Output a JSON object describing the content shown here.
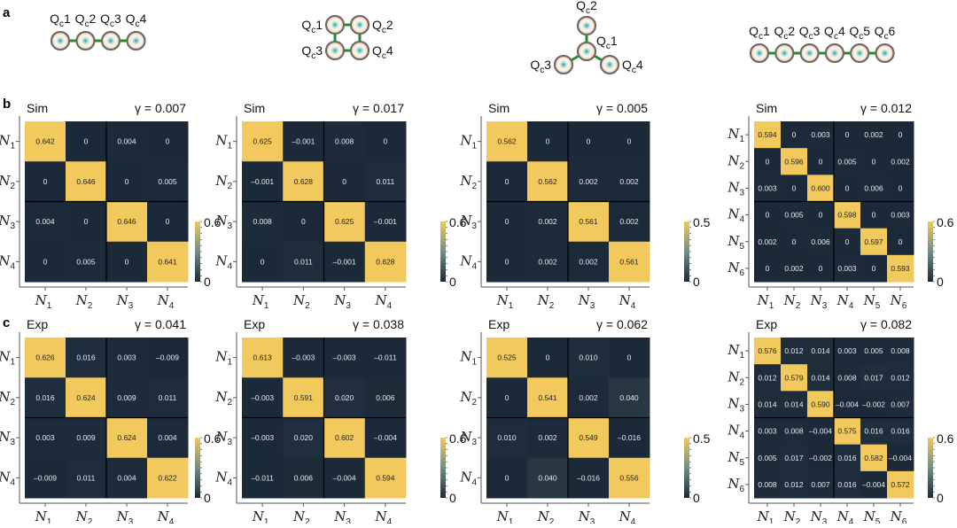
{
  "panel_labels": {
    "a": "a",
    "b": "b",
    "c": "c"
  },
  "colors": {
    "low": "#1b2938",
    "mid": "#6f8f86",
    "high": "#f1c95c",
    "coupler": "#1a8f2a",
    "qubit_ring": "#6b6b6b",
    "qubit_fill": "#f7d9bf",
    "qubit_core": "#3aa6a6"
  },
  "diagrams": [
    {
      "layout": "chain",
      "qubits": [
        "Qc1",
        "Qc2",
        "Qc3",
        "Qc4"
      ]
    },
    {
      "layout": "square",
      "qubits": [
        "Qc1",
        "Qc2",
        "Qc3",
        "Qc4"
      ]
    },
    {
      "layout": "star",
      "qubits": [
        "Qc1",
        "Qc2",
        "Qc3",
        "Qc4"
      ]
    },
    {
      "layout": "chain",
      "qubits": [
        "Qc1",
        "Qc2",
        "Qc3",
        "Qc4",
        "Qc5",
        "Qc6"
      ]
    }
  ],
  "chart_data": [
    {
      "type": "heatmap",
      "row": "b",
      "title": "Sim",
      "gamma": "γ = 0.007",
      "ticks": [
        "N1",
        "N2",
        "N3",
        "N4"
      ],
      "colorbar": {
        "min": 0,
        "max": 0.6,
        "labels": [
          "0.6",
          "0"
        ]
      },
      "values": [
        [
          "0.642",
          "0",
          "0.004",
          "0"
        ],
        [
          "0",
          "0.646",
          "0",
          "0.005"
        ],
        [
          "0.004",
          "0",
          "0.646",
          "0"
        ],
        [
          "0",
          "0.005",
          "0",
          "0.641"
        ]
      ]
    },
    {
      "type": "heatmap",
      "row": "b",
      "title": "Sim",
      "gamma": "γ = 0.017",
      "ticks": [
        "N1",
        "N2",
        "N3",
        "N4"
      ],
      "colorbar": {
        "min": 0,
        "max": 0.6,
        "labels": [
          "0.6",
          "0"
        ]
      },
      "values": [
        [
          "0.625",
          "-0.001",
          "0.008",
          "0"
        ],
        [
          "-0.001",
          "0.628",
          "0",
          "0.011"
        ],
        [
          "0.008",
          "0",
          "0.625",
          "-0.001"
        ],
        [
          "0",
          "0.011",
          "-0.001",
          "0.628"
        ]
      ]
    },
    {
      "type": "heatmap",
      "row": "b",
      "title": "Sim",
      "gamma": "γ = 0.005",
      "ticks": [
        "N1",
        "N2",
        "N3",
        "N4"
      ],
      "colorbar": {
        "min": 0,
        "max": 0.5,
        "labels": [
          "0.5",
          "0"
        ]
      },
      "values": [
        [
          "0.562",
          "0",
          "0",
          "0"
        ],
        [
          "0",
          "0.562",
          "0.002",
          "0.002"
        ],
        [
          "0",
          "0.002",
          "0.561",
          "0.002"
        ],
        [
          "0",
          "0.002",
          "0.002",
          "0.561"
        ]
      ]
    },
    {
      "type": "heatmap",
      "row": "b",
      "title": "Sim",
      "gamma": "γ = 0.012",
      "ticks": [
        "N1",
        "N2",
        "N3",
        "N4",
        "N5",
        "N6"
      ],
      "colorbar": {
        "min": 0,
        "max": 0.6,
        "labels": [
          "0.6",
          "0"
        ]
      },
      "values": [
        [
          "0.594",
          "0",
          "0.003",
          "0",
          "0.002",
          "0"
        ],
        [
          "0",
          "0.596",
          "0",
          "0.005",
          "0",
          "0.002"
        ],
        [
          "0.003",
          "0",
          "0.600",
          "0",
          "0.006",
          "0"
        ],
        [
          "0",
          "0.005",
          "0",
          "0.598",
          "0",
          "0.003"
        ],
        [
          "0.002",
          "0",
          "0.006",
          "0",
          "0.597",
          "0"
        ],
        [
          "0",
          "0.002",
          "0",
          "0.003",
          "0",
          "0.593"
        ]
      ]
    },
    {
      "type": "heatmap",
      "row": "c",
      "title": "Exp",
      "gamma": "γ = 0.041",
      "ticks": [
        "N1",
        "N2",
        "N3",
        "N4"
      ],
      "colorbar": {
        "min": 0,
        "max": 0.6,
        "labels": [
          "0.6",
          "0"
        ]
      },
      "values": [
        [
          "0.626",
          "0.016",
          "0.003",
          "-0.009"
        ],
        [
          "0.016",
          "0.624",
          "0.009",
          "0.011"
        ],
        [
          "0.003",
          "0.009",
          "0.624",
          "0.004"
        ],
        [
          "-0.009",
          "0.011",
          "0.004",
          "0.622"
        ]
      ]
    },
    {
      "type": "heatmap",
      "row": "c",
      "title": "Exp",
      "gamma": "γ = 0.038",
      "ticks": [
        "N1",
        "N2",
        "N3",
        "N4"
      ],
      "colorbar": {
        "min": 0,
        "max": 0.6,
        "labels": [
          "0.6",
          "0"
        ]
      },
      "values": [
        [
          "0.613",
          "-0.003",
          "-0.003",
          "-0.011"
        ],
        [
          "-0.003",
          "0.591",
          "0.020",
          "0.006"
        ],
        [
          "-0.003",
          "0.020",
          "0.602",
          "-0.004"
        ],
        [
          "-0.011",
          "0.006",
          "-0.004",
          "0.594"
        ]
      ]
    },
    {
      "type": "heatmap",
      "row": "c",
      "title": "Exp",
      "gamma": "γ = 0.062",
      "ticks": [
        "N1",
        "N2",
        "N3",
        "N4"
      ],
      "colorbar": {
        "min": 0,
        "max": 0.5,
        "labels": [
          "0.5",
          "0"
        ]
      },
      "values": [
        [
          "0.525",
          "0",
          "0.010",
          "0"
        ],
        [
          "0",
          "0.541",
          "0.002",
          "0.040"
        ],
        [
          "0.010",
          "0.002",
          "0.549",
          "-0.016"
        ],
        [
          "0",
          "0.040",
          "-0.016",
          "0.556"
        ]
      ]
    },
    {
      "type": "heatmap",
      "row": "c",
      "title": "Exp",
      "gamma": "γ = 0.082",
      "ticks": [
        "N1",
        "N2",
        "N3",
        "N4",
        "N5",
        "N6"
      ],
      "colorbar": {
        "min": 0,
        "max": 0.6,
        "labels": [
          "0.6",
          "0"
        ]
      },
      "values": [
        [
          "0.576",
          "0.012",
          "0.014",
          "0.003",
          "0.005",
          "0.008"
        ],
        [
          "0.012",
          "0.579",
          "0.014",
          "0.008",
          "0.017",
          "0.012"
        ],
        [
          "0.014",
          "0.014",
          "0.590",
          "-0.004",
          "-0.002",
          "0.007"
        ],
        [
          "0.003",
          "0.008",
          "-0.004",
          "0.575",
          "0.016",
          "0.016"
        ],
        [
          "0.005",
          "0.017",
          "-0.002",
          "0.016",
          "0.582",
          "-0.004"
        ],
        [
          "0.008",
          "0.012",
          "0.007",
          "0.016",
          "-0.004",
          "0.572"
        ]
      ]
    }
  ]
}
